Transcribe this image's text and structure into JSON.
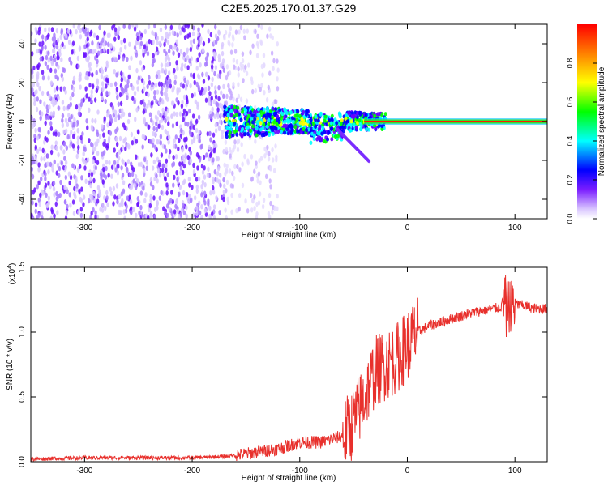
{
  "title": "C2E5.2025.170.01.37.G29",
  "chart_data": [
    {
      "type": "heatmap",
      "title": "C2E5.2025.170.01.37.G29",
      "xlabel": "Height of straight line (km)",
      "ylabel": "Frequency (Hz)",
      "xlim": [
        -350,
        130
      ],
      "ylim": [
        -50,
        50
      ],
      "x_ticks": [
        "-300",
        "-200",
        "-100",
        "0",
        "100"
      ],
      "y_ticks": [
        "40",
        "20",
        "0",
        "-20",
        "-40"
      ],
      "colorbar": {
        "label": "Normalized spectral amplitude",
        "range": [
          0,
          1
        ],
        "ticks": [
          "0.0",
          "0.2",
          "0.4",
          "0.6",
          "0.8"
        ],
        "colors": [
          "#ffffff",
          "#b48cff",
          "#6600ff",
          "#0000ff",
          "#00ffff",
          "#00ff00",
          "#ffff00",
          "#ff8800",
          "#ff0000"
        ]
      },
      "features": [
        {
          "name": "noise",
          "x_range": [
            -350,
            -170
          ],
          "freq_range": [
            -50,
            50
          ],
          "level": 0.12
        },
        {
          "name": "faint-noise",
          "x_range": [
            -170,
            -120
          ],
          "freq_range": [
            -50,
            50
          ],
          "level": 0.05
        },
        {
          "name": "band",
          "x_range": [
            -170,
            -20
          ],
          "freq_range": [
            -12,
            10
          ],
          "level": 0.35
        },
        {
          "name": "carrier",
          "x_range": [
            0,
            130
          ],
          "freq": 0,
          "level": 1.0
        }
      ]
    },
    {
      "type": "line",
      "xlabel": "Height of straight line (km)",
      "ylabel": "SNR (10 * v/v)",
      "exponent_label": "(x10",
      "exponent": "4",
      "exponent_close": ")",
      "xlim": [
        -350,
        130
      ],
      "ylim": [
        0,
        1.5
      ],
      "x_ticks": [
        "-300",
        "-200",
        "-100",
        "0",
        "100"
      ],
      "y_ticks": [
        "0.0",
        "0.5",
        "1.0",
        "1.5"
      ],
      "line_color": "#e8302c",
      "series": [
        {
          "x": [
            -350,
            -300,
            -250,
            -200,
            -170,
            -150,
            -120,
            -100,
            -80,
            -60,
            -50,
            -40,
            -30,
            -20,
            -10,
            0,
            10,
            20,
            40,
            60,
            80,
            90,
            95,
            100,
            110,
            120,
            130
          ],
          "y": [
            0.02,
            0.03,
            0.03,
            0.03,
            0.04,
            0.06,
            0.1,
            0.15,
            0.15,
            0.2,
            0.3,
            0.5,
            0.7,
            0.75,
            0.8,
            0.9,
            1.0,
            1.05,
            1.1,
            1.15,
            1.18,
            1.2,
            1.2,
            1.22,
            1.2,
            1.18,
            1.18
          ]
        }
      ]
    }
  ]
}
